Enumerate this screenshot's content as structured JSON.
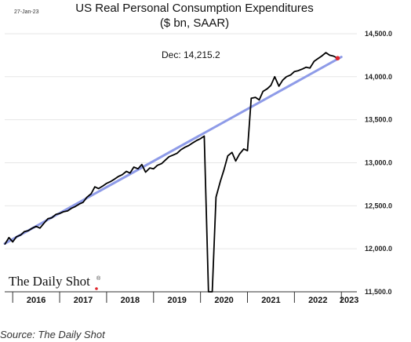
{
  "date_stamp": "27-Jan-23",
  "brand": "The Daily Shot",
  "brand_mark": "®",
  "source": "Source: The Daily Shot",
  "chart_data": {
    "type": "line",
    "title": "US Real Personal Consumption Expenditures",
    "subtitle": "($ bn, SAAR)",
    "annotation": "Dec:   14,215.2",
    "ylim": [
      11500,
      14600
    ],
    "yticks": [
      "11,500.0",
      "12,000.0",
      "12,500.0",
      "13,000.0",
      "13,500.0",
      "14,000.0",
      "14,500.0"
    ],
    "ytick_values": [
      11500,
      12000,
      12500,
      13000,
      13500,
      14000,
      14500
    ],
    "xlim": [
      2015.83,
      2023.33
    ],
    "xticks": [
      "2016",
      "2017",
      "2018",
      "2019",
      "2020",
      "2021",
      "2022",
      "2023"
    ],
    "grid": true,
    "colors": {
      "series": "#000000",
      "trend": "#8e9be8",
      "last_point": "#e0262d"
    },
    "series": [
      {
        "x": [
          2015.83,
          2015.92,
          2016.0,
          2016.08,
          2016.17,
          2016.25,
          2016.33,
          2016.42,
          2016.5,
          2016.58,
          2016.67,
          2016.75,
          2016.83,
          2016.92,
          2017.0,
          2017.08,
          2017.17,
          2017.25,
          2017.33,
          2017.42,
          2017.5,
          2017.58,
          2017.67,
          2017.75,
          2017.83,
          2017.92,
          2018.0,
          2018.08,
          2018.17,
          2018.25,
          2018.33,
          2018.42,
          2018.5,
          2018.58,
          2018.67,
          2018.75,
          2018.83,
          2018.92,
          2019.0,
          2019.08,
          2019.17,
          2019.25,
          2019.33,
          2019.42,
          2019.5,
          2019.58,
          2019.67,
          2019.75,
          2019.83,
          2019.92,
          2020.0,
          2020.08,
          2020.17,
          2020.25,
          2020.33,
          2020.42,
          2020.5,
          2020.58,
          2020.67,
          2020.75,
          2020.83,
          2020.92,
          2021.0,
          2021.08,
          2021.17,
          2021.25,
          2021.33,
          2021.42,
          2021.5,
          2021.58,
          2021.67,
          2021.75,
          2021.83,
          2021.92,
          2022.0,
          2022.08,
          2022.17,
          2022.25,
          2022.33,
          2022.42,
          2022.5,
          2022.58,
          2022.67,
          2022.75,
          2022.83,
          2022.92
        ],
        "y": [
          12050,
          12130,
          12080,
          12140,
          12160,
          12200,
          12210,
          12240,
          12260,
          12240,
          12300,
          12350,
          12360,
          12400,
          12410,
          12430,
          12440,
          12470,
          12490,
          12520,
          12540,
          12600,
          12640,
          12720,
          12700,
          12730,
          12760,
          12780,
          12810,
          12840,
          12860,
          12900,
          12880,
          12950,
          12930,
          12980,
          12890,
          12940,
          12930,
          12970,
          12990,
          13030,
          13070,
          13090,
          13110,
          13150,
          13180,
          13200,
          13230,
          13260,
          13280,
          13310,
          11500,
          11500,
          12600,
          12780,
          12920,
          13080,
          13120,
          13020,
          13100,
          13160,
          13140,
          13750,
          13760,
          13730,
          13830,
          13860,
          13900,
          14000,
          13890,
          13960,
          14000,
          14020,
          14060,
          14070,
          14090,
          14110,
          14100,
          14180,
          14210,
          14240,
          14280,
          14250,
          14240,
          14215.2
        ]
      },
      {
        "name": "trend",
        "x": [
          2015.83,
          2023.0
        ],
        "y": [
          12060,
          14230
        ]
      }
    ]
  }
}
